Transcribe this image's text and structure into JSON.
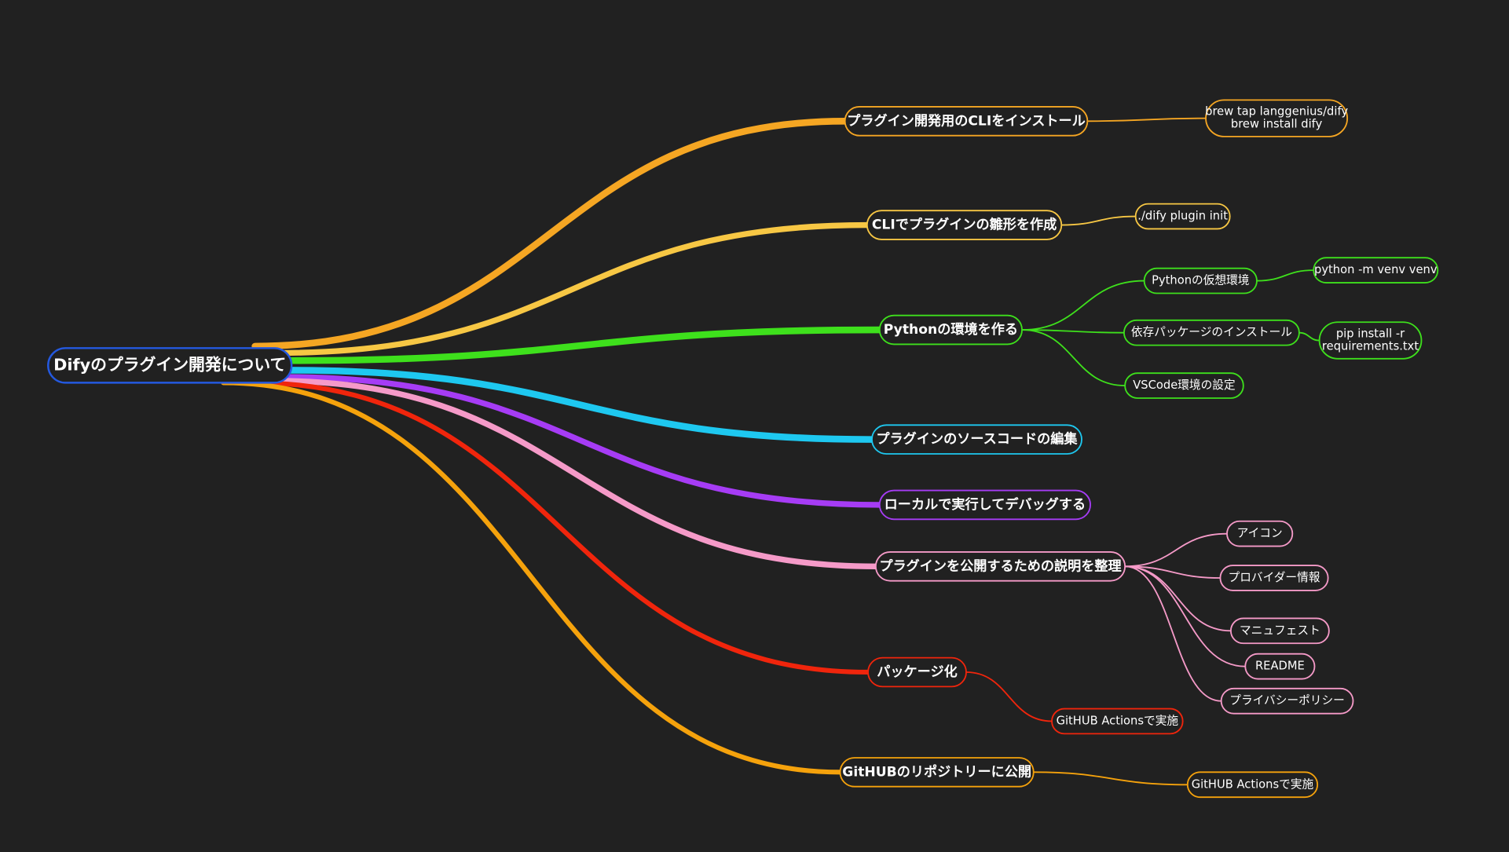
{
  "root": {
    "label": "Difyのプラグイン開発について",
    "color": "#2459e0"
  },
  "branches": [
    {
      "label": "プラグイン開発用のCLIをインストール",
      "color": "#f5a623",
      "children": [
        {
          "label": [
            "brew tap langgenius/dify",
            "brew install dify"
          ]
        }
      ]
    },
    {
      "label": "CLIでプラグインの雛形を作成",
      "color": "#f7c744",
      "children": [
        {
          "label": "./dify plugin init"
        }
      ]
    },
    {
      "label": "Pythonの環境を作る",
      "color": "#3ee01c",
      "children": [
        {
          "label": "Pythonの仮想環境",
          "children": [
            {
              "label": "python -m venv venv"
            }
          ]
        },
        {
          "label": "依存パッケージのインストール",
          "children": [
            {
              "label": [
                "pip install -r",
                "requirements.txt"
              ]
            }
          ]
        },
        {
          "label": "VSCode環境の設定"
        }
      ]
    },
    {
      "label": "プラグインのソースコードの編集",
      "color": "#1ec8f0",
      "children": []
    },
    {
      "label": "ローカルで実行してデバッグする",
      "color": "#a63cf5",
      "children": []
    },
    {
      "label": "プラグインを公開するための説明を整理",
      "color": "#f59ac8",
      "children": [
        {
          "label": "アイコン"
        },
        {
          "label": "プロバイダー情報"
        },
        {
          "label": "マニュフェスト"
        },
        {
          "label": "README"
        },
        {
          "label": "プライバシーポリシー"
        }
      ]
    },
    {
      "label": "パッケージ化",
      "color": "#f0250c",
      "children": [
        {
          "label": "GitHUB Actionsで実施"
        }
      ]
    },
    {
      "label": "GitHUBのリポジトリーに公開",
      "color": "#f5a20c",
      "children": [
        {
          "label": "GitHUB Actionsで実施"
        }
      ]
    }
  ]
}
